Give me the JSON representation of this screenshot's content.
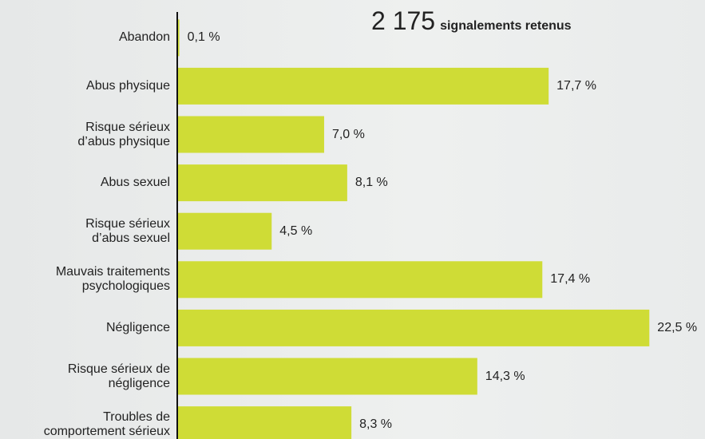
{
  "chart_data": {
    "type": "barh",
    "headline_number": "2 175",
    "headline_text": "signalements retenus",
    "categories": [
      "Abandon",
      "Abus physique",
      "Risque sérieux\nd’abus physique",
      "Abus sexuel",
      "Risque sérieux\nd’abus sexuel",
      "Mauvais traitements\npsychologiques",
      "Négligence",
      "Risque sérieux de\nnégligence",
      "Troubles de\ncomportement sérieux"
    ],
    "values": [
      0.1,
      17.7,
      7.0,
      8.1,
      4.5,
      17.4,
      22.5,
      14.3,
      8.3
    ],
    "value_labels": [
      "0,1 %",
      "17,7 %",
      "7,0 %",
      "8,1 %",
      "4,5 %",
      "17,4 %",
      "22,5 %",
      "14,3 %",
      "8,3 %"
    ],
    "color": "#cfdc36",
    "xlim": [
      0,
      25
    ]
  }
}
